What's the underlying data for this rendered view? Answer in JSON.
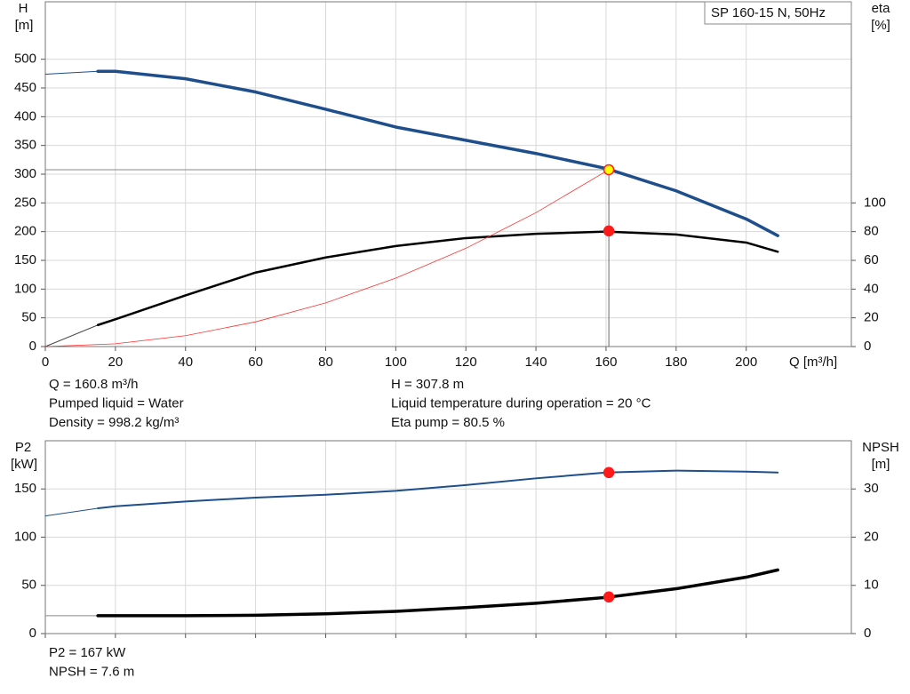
{
  "chart_data": [
    {
      "type": "line",
      "title": "SP 160-15 N, 50Hz",
      "x_label": "Q [m³/h]",
      "y_label": "H",
      "y_unit": "[m]",
      "y2_label": "eta",
      "y2_unit": "[%]",
      "xlim": [
        0,
        230
      ],
      "xticks": [
        0,
        20,
        40,
        60,
        80,
        100,
        120,
        140,
        160,
        180,
        200
      ],
      "ylim": [
        0,
        600
      ],
      "yticks": [
        0,
        50,
        100,
        150,
        200,
        250,
        300,
        350,
        400,
        450,
        500
      ],
      "y2lim": [
        0,
        240
      ],
      "y2ticks": [
        0,
        20,
        40,
        60,
        80,
        100
      ],
      "grid": true,
      "series": [
        {
          "color": "#1f4e8c",
          "linewidth": 1,
          "x": [
            0,
            15
          ],
          "values": [
            474,
            479
          ]
        },
        {
          "color": "#1f4e8c",
          "linewidth": 3.5,
          "x": [
            15,
            20,
            40,
            60,
            80,
            100,
            120,
            140,
            160,
            180,
            200,
            209
          ],
          "values": [
            479,
            479,
            466,
            443,
            413,
            382,
            359,
            336,
            310,
            271,
            222,
            193
          ]
        },
        {
          "color": "#444444",
          "linewidth": 1,
          "axis": "y2",
          "x": [
            0,
            15
          ],
          "values": [
            0,
            15
          ]
        },
        {
          "color": "#000000",
          "linewidth": 2.5,
          "axis": "y2",
          "x": [
            15,
            20,
            40,
            60,
            80,
            100,
            120,
            140,
            160,
            180,
            200,
            209
          ],
          "values": [
            15,
            19,
            35.6,
            51.5,
            62,
            70,
            75.5,
            78.5,
            80,
            78,
            72.4,
            66
          ]
        },
        {
          "color": "#ff3030",
          "linewidth": 0.8,
          "x": [
            0,
            20,
            40,
            60,
            80,
            100,
            120,
            140,
            160.8
          ],
          "values": [
            0,
            4.8,
            19,
            43,
            76,
            119,
            171,
            233,
            307.8
          ]
        }
      ],
      "markers": [
        {
          "x": 160.8,
          "y": 307.8,
          "color": "#ffff00",
          "edge": "#ff2020"
        },
        {
          "x": 160.8,
          "y": 80.5,
          "axis": "y2",
          "color": "#ff1a1a",
          "edge": "#ff1a1a"
        }
      ],
      "notes": [
        "Q = 160.8 m³/h",
        "Pumped liquid = Water",
        "Density = 998.2 kg/m³",
        "H = 307.8 m",
        "Liquid temperature during operation = 20 °C",
        "Eta pump = 80.5 %"
      ]
    },
    {
      "type": "line",
      "y_label": "P2",
      "y_unit": "[kW]",
      "y2_label": "NPSH",
      "y2_unit": "[m]",
      "xlim": [
        0,
        230
      ],
      "ylim": [
        0,
        200
      ],
      "yticks": [
        0,
        50,
        100,
        150
      ],
      "y2lim": [
        0,
        40
      ],
      "y2ticks": [
        0,
        10,
        20,
        30
      ],
      "grid": true,
      "series": [
        {
          "color": "#1f4e8c",
          "linewidth": 1,
          "x": [
            0,
            15
          ],
          "values": [
            122,
            130
          ]
        },
        {
          "color": "#1f4e8c",
          "linewidth": 2,
          "x": [
            15,
            20,
            40,
            60,
            80,
            100,
            120,
            140,
            160,
            180,
            200,
            209
          ],
          "values": [
            130,
            132,
            137,
            141,
            144,
            148,
            154,
            161,
            167,
            169,
            168,
            167
          ]
        },
        {
          "color": "#888888",
          "linewidth": 1,
          "axis": "y2",
          "x": [
            0,
            15
          ],
          "values": [
            3.7,
            3.7
          ]
        },
        {
          "color": "#000000",
          "linewidth": 3.5,
          "axis": "y2",
          "x": [
            15,
            20,
            40,
            60,
            80,
            100,
            120,
            140,
            160,
            180,
            200,
            209
          ],
          "values": [
            3.7,
            3.7,
            3.7,
            3.8,
            4.1,
            4.6,
            5.4,
            6.3,
            7.5,
            9.3,
            11.7,
            13.2
          ]
        }
      ],
      "markers": [
        {
          "x": 160.8,
          "y": 167,
          "color": "#ff1a1a",
          "edge": "#ff1a1a"
        },
        {
          "x": 160.8,
          "y": 7.6,
          "axis": "y2",
          "color": "#ff1a1a",
          "edge": "#ff1a1a"
        }
      ],
      "notes": [
        "P2 = 167 kW",
        "NPSH = 7.6 m"
      ]
    }
  ]
}
